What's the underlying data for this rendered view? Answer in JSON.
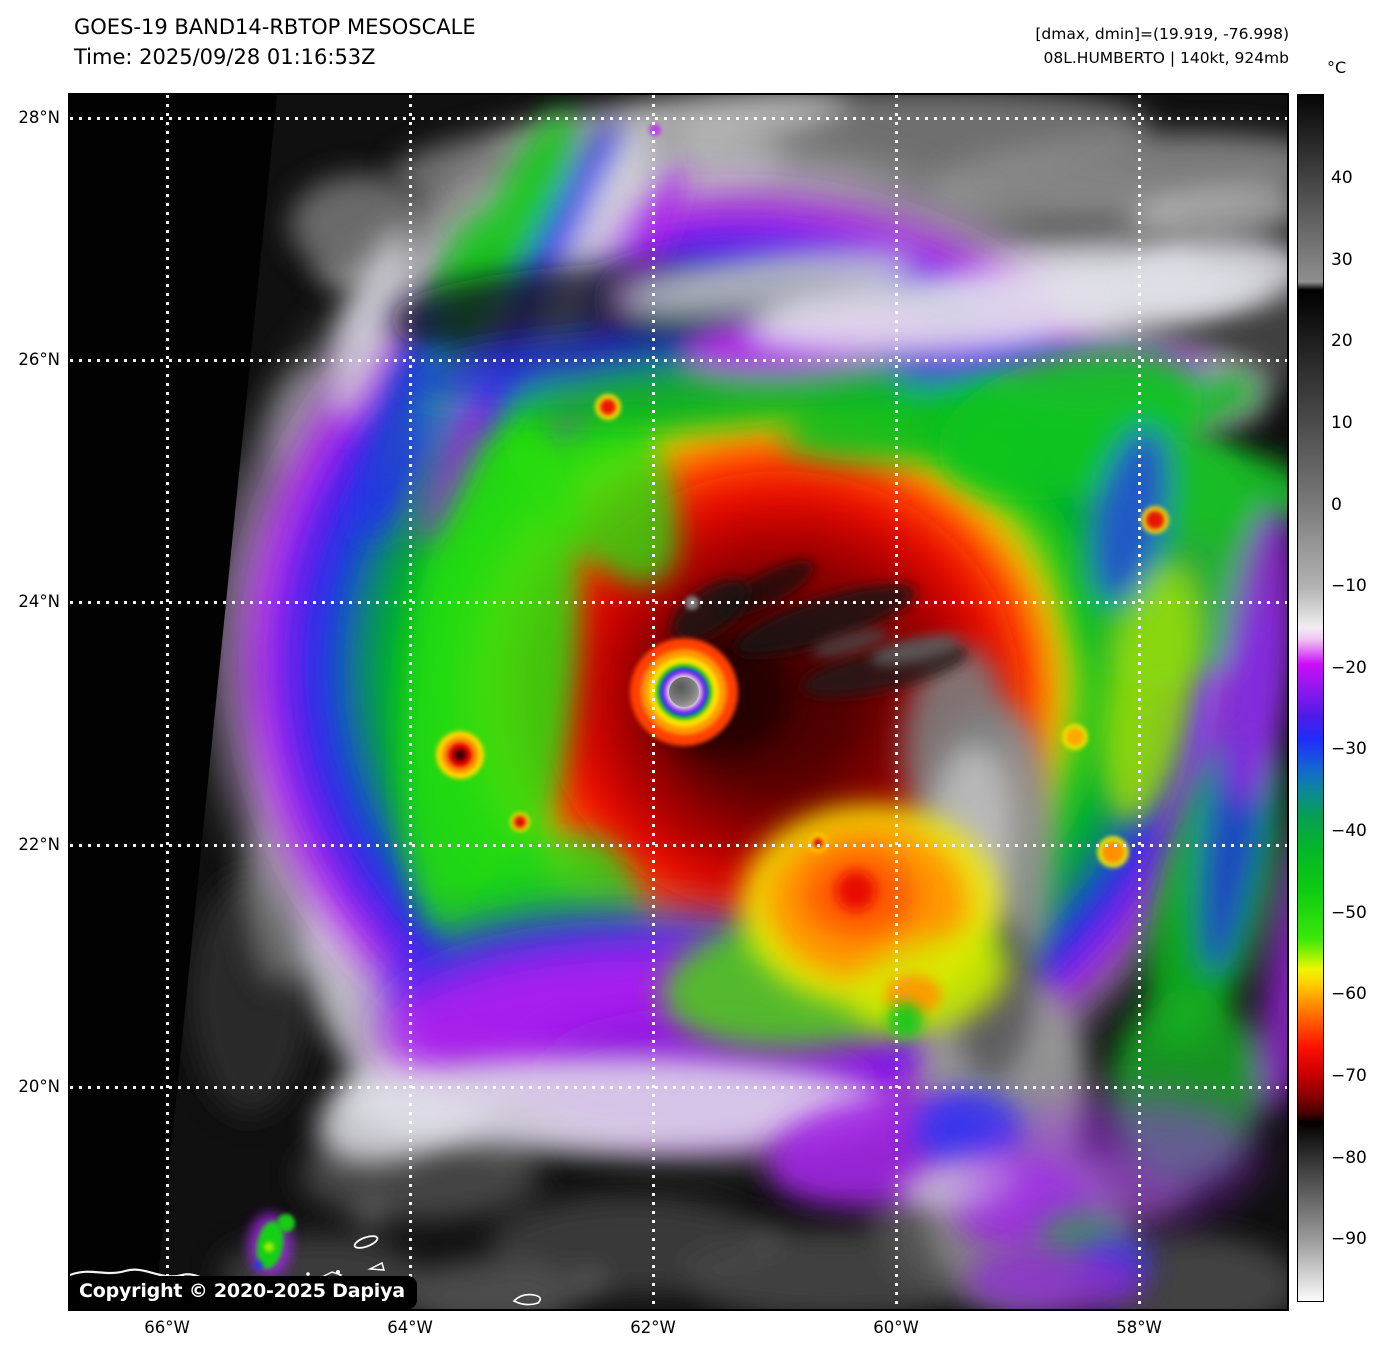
{
  "header": {
    "title": "GOES-19 BAND14-RBTOP MESOSCALE",
    "time_label": "Time: 2025/09/28 01:16:53Z",
    "dmax_dmin": "[dmax, dmin]=(19.919, -76.998)",
    "storm_info": "08L.HUMBERTO | 140kt, 924mb"
  },
  "storm": {
    "id": "08L",
    "name": "HUMBERTO",
    "intensity": "140kt",
    "pressure": "924mb",
    "dmax": "19.919",
    "dmin": "-76.998"
  },
  "axes": {
    "lat_ticks": [
      "28°N",
      "26°N",
      "24°N",
      "22°N",
      "20°N"
    ],
    "lon_ticks": [
      "66°W",
      "64°W",
      "62°W",
      "60°W",
      "58°W"
    ]
  },
  "colorbar": {
    "unit": "°C",
    "ticks": [
      "40",
      "30",
      "20",
      "10",
      "0",
      "−10",
      "−20",
      "−30",
      "−40",
      "−50",
      "−60",
      "−70",
      "−80",
      "−90"
    ],
    "palette": [
      [
        0.0,
        "#050505"
      ],
      [
        0.155,
        "#8f8f8f"
      ],
      [
        0.1617,
        "#000000"
      ],
      [
        0.204,
        "#1e1e1e"
      ],
      [
        0.272,
        "#4b4b4b"
      ],
      [
        0.34,
        "#7a7a7a"
      ],
      [
        0.408,
        "#b3b3b3"
      ],
      [
        0.43,
        "#dadada"
      ],
      [
        0.442,
        "#f2ecf4"
      ],
      [
        0.452,
        "#efc0f2"
      ],
      [
        0.472,
        "#cc0cf8"
      ],
      [
        0.492,
        "#9018ee"
      ],
      [
        0.515,
        "#4e1ae8"
      ],
      [
        0.535,
        "#1f2df8"
      ],
      [
        0.558,
        "#1465d2"
      ],
      [
        0.578,
        "#0b8a96"
      ],
      [
        0.598,
        "#079e54"
      ],
      [
        0.623,
        "#04b42b"
      ],
      [
        0.66,
        "#0ccc10"
      ],
      [
        0.7,
        "#3ce80a"
      ],
      [
        0.713,
        "#97f200"
      ],
      [
        0.725,
        "#eef600"
      ],
      [
        0.737,
        "#ffd000"
      ],
      [
        0.752,
        "#ff9400"
      ],
      [
        0.772,
        "#ff4d00"
      ],
      [
        0.79,
        "#fb1000"
      ],
      [
        0.81,
        "#cf0000"
      ],
      [
        0.83,
        "#8a0000"
      ],
      [
        0.845,
        "#420000"
      ],
      [
        0.852,
        "#050000"
      ],
      [
        0.88,
        "#2f2f2f"
      ],
      [
        0.95,
        "#9c9c9c"
      ],
      [
        1.0,
        "#fbfbfb"
      ]
    ]
  },
  "map": {
    "copyright": "Copyright © 2020-2025 Dapiya"
  }
}
